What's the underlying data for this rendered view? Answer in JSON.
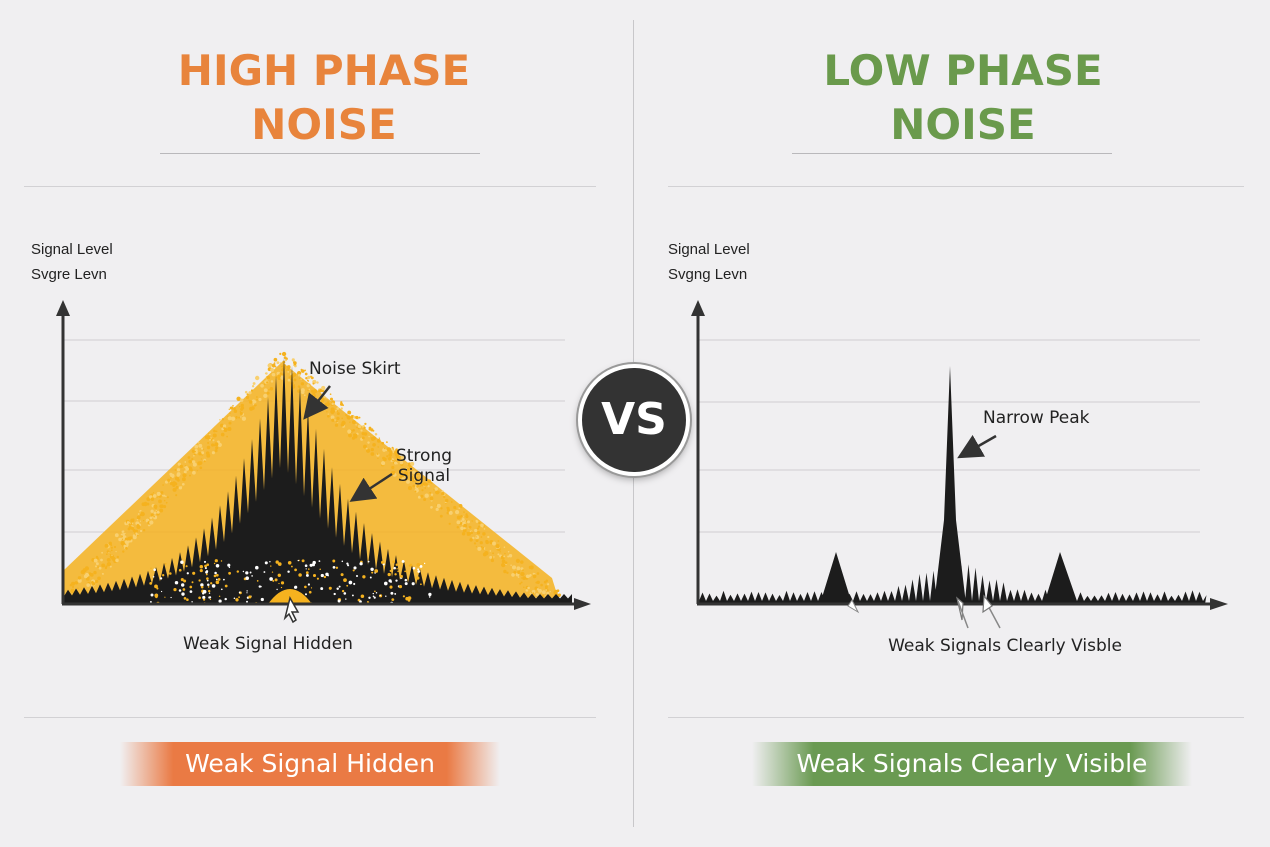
{
  "left": {
    "title_line1": "HIGH PHASE",
    "title_line2": "NOISE",
    "ylabel_line1": "Signal Level",
    "ylabel_line2": "Svgre Levn",
    "annotation_skirt": "Noise Skirt",
    "annotation_strong_line1": "Strong",
    "annotation_strong_line2": "Signal",
    "annotation_weak": "Weak Signal Hidden",
    "banner": "Weak Signal Hidden",
    "color_title": "#e8843c",
    "color_noise": "#f5b21f"
  },
  "right": {
    "title_line1": "LOW PHASE",
    "title_line2": "NOISE",
    "ylabel_line1": "Signal Level",
    "ylabel_line2": "Svgng Levn",
    "annotation_peak": "Narrow Peak",
    "annotation_weak": "Weak Signals Clearly Visble",
    "banner": "Weak Signals Clearly Visible",
    "color_title": "#6a9a4c"
  },
  "vs": "VS"
}
